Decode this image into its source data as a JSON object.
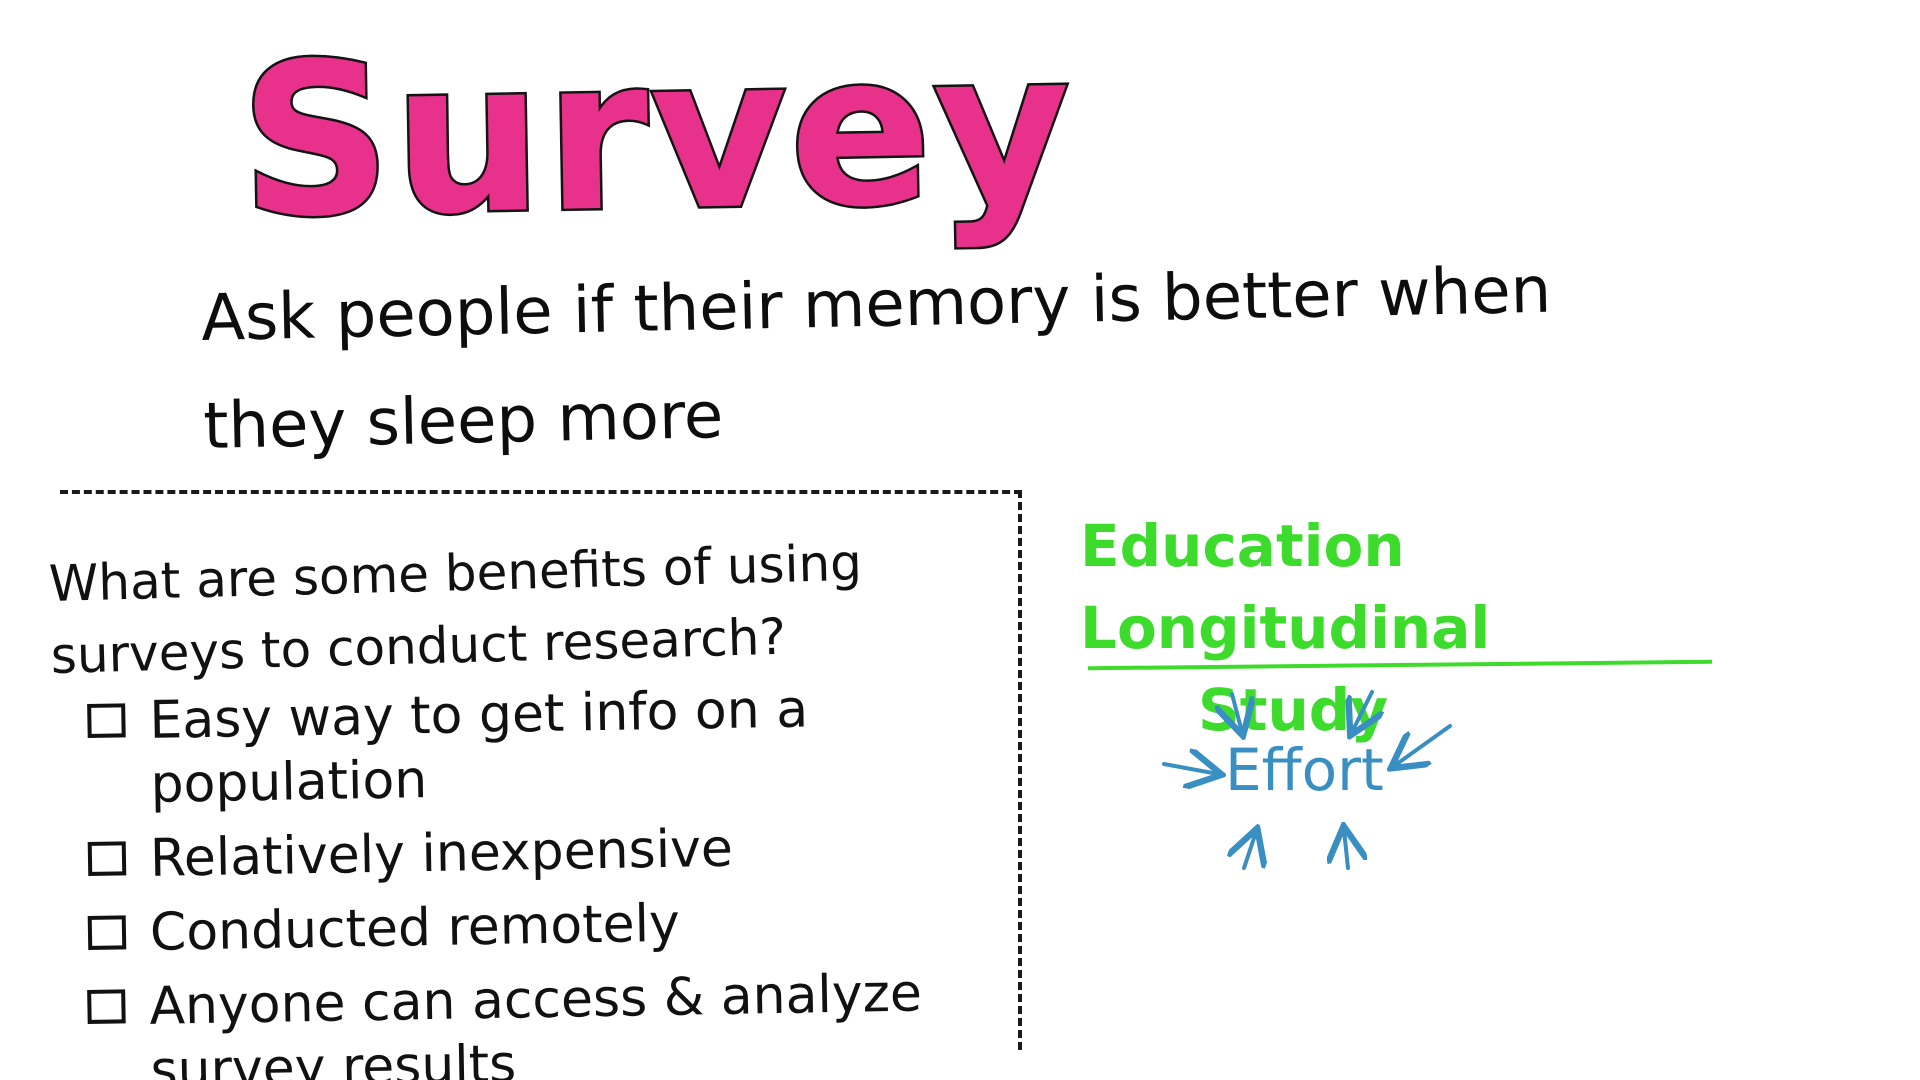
{
  "title": "Survey",
  "subtitle": "Ask people if their memory is better when they sleep more",
  "question": {
    "prompt": "What are some benefits of using surveys to conduct research?",
    "benefits": [
      "Easy way to get info on a population",
      "Relatively inexpensive",
      "Conducted remotely",
      "Anyone can access & analyze survey results"
    ]
  },
  "study": {
    "heading_line1": "Education Longitudinal",
    "heading_line2": "Study",
    "concept": "Effort"
  },
  "colors": {
    "title": "#e8318a",
    "study_heading": "#3ddb2c",
    "concept": "#3a8fc2",
    "ink": "#111111"
  }
}
